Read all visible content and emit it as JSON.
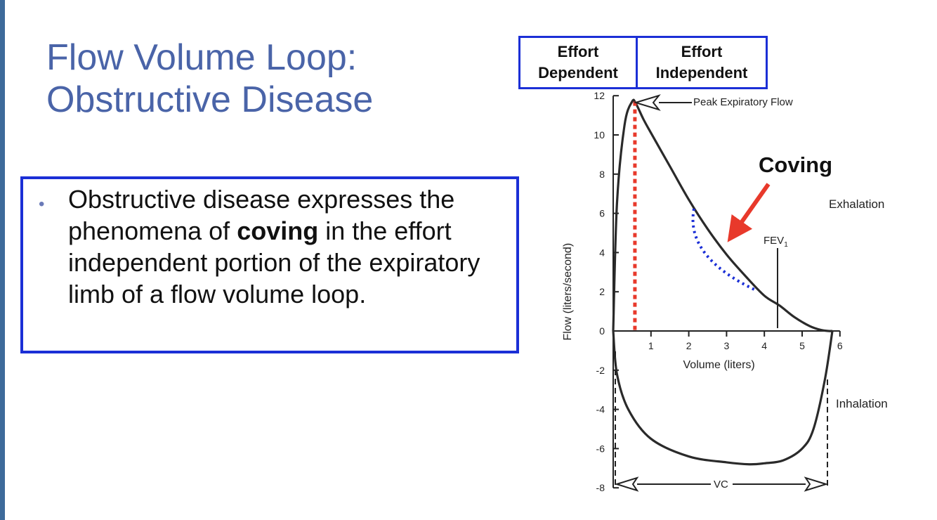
{
  "slide": {
    "title_line1": "Flow Volume Loop:",
    "title_line2": "Obstructive Disease",
    "bullet": {
      "text_before": "Obstructive disease expresses the phenomena of ",
      "bold": "coving",
      "text_after": " in the effort independent portion of the expiratory limb of a flow volume loop."
    }
  },
  "figure": {
    "header_left_line1": "Effort",
    "header_left_line2": "Dependent",
    "header_right_line1": "Effort",
    "header_right_line2": "Independent",
    "annotation_peak": "Peak Expiratory Flow",
    "annotation_coving": "Coving",
    "annotation_exhalation": "Exhalation",
    "annotation_inhalation": "Inhalation",
    "annotation_fev1": "FEV",
    "annotation_fev1_sub": "1",
    "annotation_vc": "VC",
    "colors": {
      "coving_arrow": "#e8392b",
      "coving_dots": "#1b2fd6",
      "peak_line": "#e8392b",
      "header_border": "#1b2fd6"
    }
  },
  "chart_data": {
    "type": "line",
    "xlabel": "Volume (liters)",
    "ylabel": "Flow (liters/second)",
    "xlim": [
      0,
      6
    ],
    "ylim": [
      -8,
      12
    ],
    "x_ticks": [
      "1",
      "2",
      "3",
      "4",
      "5",
      "6"
    ],
    "y_ticks": [
      "12",
      "10",
      "8",
      "6",
      "4",
      "2",
      "0",
      "-2",
      "-4",
      "-6",
      "-8"
    ],
    "series": [
      {
        "x": [
          0,
          0.1,
          0.3,
          0.5,
          0.6,
          0.8,
          1.0,
          1.5,
          2.0,
          2.5,
          3.0,
          3.5,
          4.0,
          4.4,
          4.8,
          5.2,
          5.5,
          5.7,
          5.8
        ],
        "y": [
          0,
          6.5,
          10.5,
          11.7,
          11.6,
          10.8,
          10.1,
          8.4,
          6.7,
          5.2,
          3.9,
          2.8,
          1.8,
          1.3,
          0.7,
          0.25,
          0.05,
          0.0,
          0.0
        ]
      },
      {
        "x": [
          0,
          0.1,
          0.4,
          1.0,
          2.0,
          3.0,
          3.6,
          4.0,
          4.5,
          5.0,
          5.3,
          5.6,
          5.8
        ],
        "y": [
          0,
          -2.2,
          -4.0,
          -5.5,
          -6.4,
          -6.7,
          -6.8,
          -6.75,
          -6.6,
          -6.0,
          -5.0,
          -2.5,
          0.0
        ]
      }
    ]
  }
}
